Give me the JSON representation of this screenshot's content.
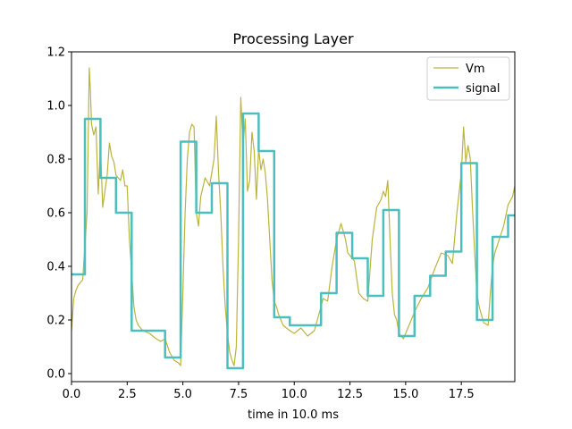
{
  "chart_data": {
    "type": "line",
    "title": "Processing Layer",
    "xlabel": "time in 10.0 ms",
    "ylabel": "",
    "xlim": [
      0,
      19.9
    ],
    "ylim": [
      -0.03,
      1.2
    ],
    "xticks": [
      0.0,
      2.5,
      5.0,
      7.5,
      10.0,
      12.5,
      15.0,
      17.5
    ],
    "xtick_labels": [
      "0.0",
      "2.5",
      "5.0",
      "7.5",
      "10.0",
      "12.5",
      "15.0",
      "17.5"
    ],
    "yticks": [
      0.0,
      0.2,
      0.4,
      0.6,
      0.8,
      1.0,
      1.2
    ],
    "ytick_labels": [
      "0.0",
      "0.2",
      "0.4",
      "0.6",
      "0.8",
      "1.0",
      "1.2"
    ],
    "grid": false,
    "legend_position": "top-right",
    "series": [
      {
        "name": "Vm",
        "color": "#bcb33d",
        "style": "thin-line",
        "x": [
          0.0,
          0.1,
          0.2,
          0.3,
          0.5,
          0.7,
          0.8,
          0.85,
          0.9,
          1.0,
          1.1,
          1.2,
          1.3,
          1.4,
          1.5,
          1.6,
          1.7,
          1.8,
          1.9,
          2.0,
          2.1,
          2.2,
          2.3,
          2.4,
          2.5,
          2.6,
          2.7,
          2.8,
          2.9,
          3.0,
          3.2,
          3.5,
          3.8,
          4.0,
          4.2,
          4.4,
          4.6,
          4.8,
          4.9,
          5.0,
          5.1,
          5.2,
          5.3,
          5.4,
          5.5,
          5.6,
          5.7,
          5.8,
          6.0,
          6.2,
          6.4,
          6.5,
          6.6,
          6.7,
          6.8,
          6.9,
          7.0,
          7.1,
          7.2,
          7.3,
          7.4,
          7.5,
          7.6,
          7.7,
          7.8,
          7.9,
          8.0,
          8.1,
          8.2,
          8.3,
          8.4,
          8.5,
          8.6,
          8.7,
          8.8,
          8.9,
          9.0,
          9.1,
          9.2,
          9.3,
          9.5,
          9.8,
          10.0,
          10.3,
          10.6,
          10.9,
          11.1,
          11.3,
          11.5,
          11.7,
          11.9,
          12.1,
          12.3,
          12.4,
          12.5,
          12.7,
          12.9,
          13.1,
          13.3,
          13.5,
          13.7,
          13.9,
          14.0,
          14.1,
          14.2,
          14.3,
          14.4,
          14.5,
          14.6,
          14.7,
          14.9,
          15.1,
          15.2,
          15.4,
          15.7,
          16.0,
          16.3,
          16.6,
          16.9,
          17.1,
          17.3,
          17.5,
          17.6,
          17.7,
          17.8,
          17.9,
          18.0,
          18.1,
          18.2,
          18.3,
          18.5,
          18.7,
          18.8,
          18.9,
          19.0,
          19.2,
          19.4,
          19.6,
          19.8,
          19.9
        ],
        "y": [
          0.16,
          0.28,
          0.31,
          0.33,
          0.35,
          0.6,
          1.14,
          1.05,
          0.93,
          0.89,
          0.92,
          0.67,
          0.85,
          0.62,
          0.68,
          0.74,
          0.86,
          0.81,
          0.79,
          0.74,
          0.73,
          0.72,
          0.76,
          0.7,
          0.7,
          0.5,
          0.38,
          0.25,
          0.2,
          0.18,
          0.16,
          0.15,
          0.13,
          0.12,
          0.13,
          0.08,
          0.05,
          0.04,
          0.03,
          0.3,
          0.6,
          0.8,
          0.9,
          0.93,
          0.92,
          0.6,
          0.55,
          0.66,
          0.73,
          0.7,
          0.8,
          0.96,
          0.75,
          0.6,
          0.4,
          0.25,
          0.15,
          0.08,
          0.05,
          0.03,
          0.1,
          0.5,
          1.03,
          0.85,
          0.95,
          0.68,
          0.72,
          0.9,
          0.83,
          0.65,
          0.84,
          0.76,
          0.8,
          0.75,
          0.65,
          0.5,
          0.35,
          0.27,
          0.25,
          0.22,
          0.18,
          0.16,
          0.15,
          0.17,
          0.14,
          0.16,
          0.22,
          0.28,
          0.27,
          0.4,
          0.5,
          0.56,
          0.5,
          0.45,
          0.44,
          0.42,
          0.3,
          0.28,
          0.27,
          0.5,
          0.62,
          0.65,
          0.68,
          0.66,
          0.72,
          0.5,
          0.3,
          0.22,
          0.2,
          0.15,
          0.13,
          0.17,
          0.19,
          0.23,
          0.28,
          0.32,
          0.39,
          0.45,
          0.44,
          0.41,
          0.6,
          0.75,
          0.92,
          0.79,
          0.85,
          0.8,
          0.62,
          0.45,
          0.3,
          0.25,
          0.19,
          0.18,
          0.3,
          0.4,
          0.45,
          0.5,
          0.55,
          0.63,
          0.66,
          0.7
        ]
      },
      {
        "name": "signal",
        "color": "#4bbfbd",
        "style": "thick-step",
        "x": [
          0.0,
          0.6,
          0.6,
          1.3,
          1.3,
          2.0,
          2.0,
          2.7,
          2.7,
          4.2,
          4.2,
          4.9,
          4.9,
          5.6,
          5.6,
          6.3,
          6.3,
          7.0,
          7.0,
          7.7,
          7.7,
          8.4,
          8.4,
          9.1,
          9.1,
          9.8,
          9.8,
          11.2,
          11.2,
          11.9,
          11.9,
          12.6,
          12.6,
          13.3,
          13.3,
          14.0,
          14.0,
          14.7,
          14.7,
          15.4,
          15.4,
          16.1,
          16.1,
          16.8,
          16.8,
          17.5,
          17.5,
          18.2,
          18.2,
          18.9,
          18.9,
          19.6,
          19.6,
          19.9
        ],
        "y": [
          0.37,
          0.37,
          0.95,
          0.95,
          0.73,
          0.73,
          0.6,
          0.6,
          0.16,
          0.16,
          0.06,
          0.06,
          0.865,
          0.865,
          0.6,
          0.6,
          0.71,
          0.71,
          0.02,
          0.02,
          0.97,
          0.97,
          0.83,
          0.83,
          0.21,
          0.21,
          0.18,
          0.18,
          0.3,
          0.3,
          0.525,
          0.525,
          0.43,
          0.43,
          0.29,
          0.29,
          0.61,
          0.61,
          0.14,
          0.14,
          0.29,
          0.29,
          0.365,
          0.365,
          0.455,
          0.455,
          0.785,
          0.785,
          0.2,
          0.2,
          0.51,
          0.51,
          0.59,
          0.59
        ]
      }
    ]
  }
}
